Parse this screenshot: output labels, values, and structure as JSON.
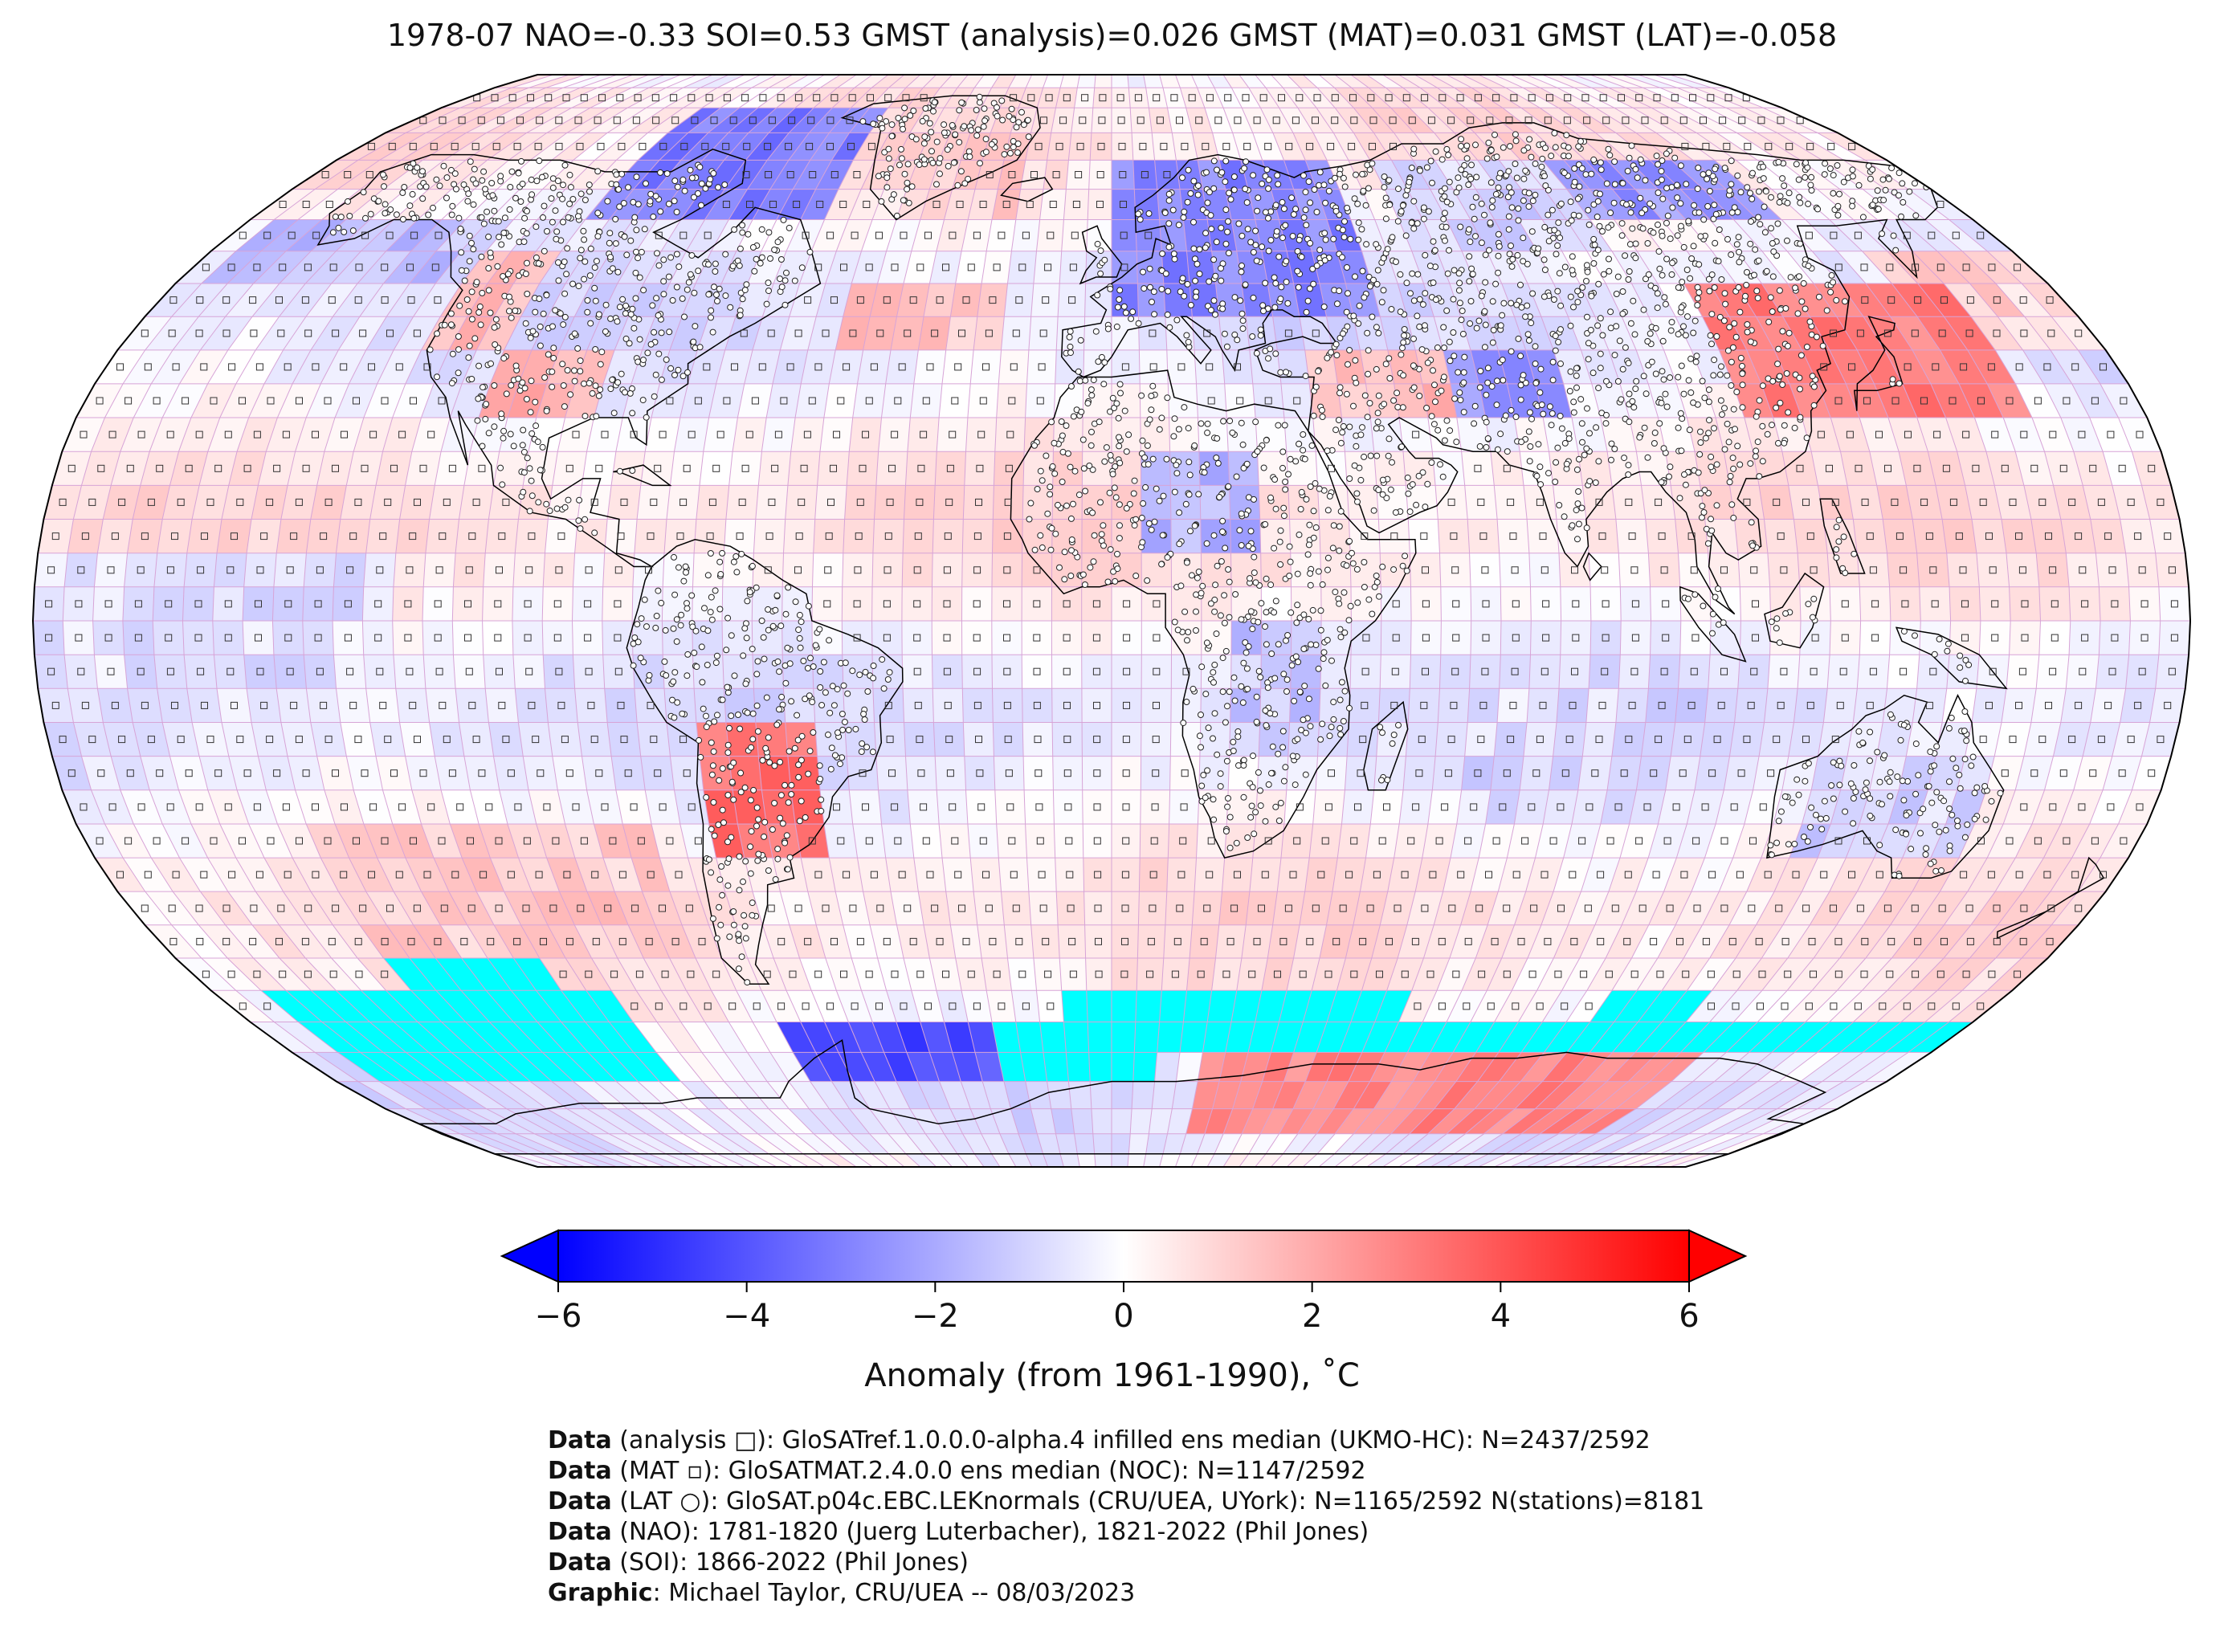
{
  "title": "1978-07 NAO=-0.33 SOI=0.53 GMST (analysis)=0.026 GMST (MAT)=0.031 GMST (LAT)=-0.058",
  "colorbar": {
    "label": "Anomaly (from 1961-1990), ˚C",
    "ticks": [
      "−6",
      "−4",
      "−2",
      "0",
      "2",
      "4",
      "6"
    ],
    "tick_values": [
      -6,
      -4,
      -2,
      0,
      2,
      4,
      6
    ],
    "min_color": "#0000ff",
    "mid_color": "#ffffff",
    "max_color": "#ff0000",
    "missing_color": "#00ffff"
  },
  "map": {
    "projection": "Robinson",
    "grid_color": "#d7a4d7",
    "coast_color": "#000000",
    "anomaly_regions": [
      {
        "name": "north-canada",
        "lon": [
          -110,
          -60
        ],
        "lat": [
          58,
          80
        ],
        "value": -3.0
      },
      {
        "name": "greenland-east",
        "lon": [
          -40,
          -20
        ],
        "lat": [
          60,
          75
        ],
        "value": 1.2
      },
      {
        "name": "alaska-pacific",
        "lon": [
          -175,
          -125
        ],
        "lat": [
          50,
          62
        ],
        "value": -1.5
      },
      {
        "name": "usa-central",
        "lon": [
          -110,
          -90
        ],
        "lat": [
          30,
          40
        ],
        "value": 1.8
      },
      {
        "name": "west-coast",
        "lon": [
          -125,
          -110
        ],
        "lat": [
          40,
          55
        ],
        "value": 1.6
      },
      {
        "name": "atlantic-north",
        "lon": [
          -50,
          -20
        ],
        "lat": [
          40,
          50
        ],
        "value": 1.3
      },
      {
        "name": "europe-scand",
        "lon": [
          0,
          50
        ],
        "lat": [
          45,
          70
        ],
        "value": -2.8
      },
      {
        "name": "siberia-west",
        "lon": [
          60,
          100
        ],
        "lat": [
          55,
          70
        ],
        "value": -1.0
      },
      {
        "name": "siberia-east",
        "lon": [
          100,
          140
        ],
        "lat": [
          58,
          72
        ],
        "value": -2.4
      },
      {
        "name": "east-asia",
        "lon": [
          110,
          160
        ],
        "lat": [
          30,
          52
        ],
        "value": 3.0
      },
      {
        "name": "middle-east",
        "lon": [
          35,
          60
        ],
        "lat": [
          28,
          42
        ],
        "value": 1.5
      },
      {
        "name": "central-asia",
        "lon": [
          60,
          80
        ],
        "lat": [
          28,
          40
        ],
        "value": -2.4
      },
      {
        "name": "north-africa",
        "lon": [
          5,
          25
        ],
        "lat": [
          10,
          25
        ],
        "value": -1.8
      },
      {
        "name": "central-africa",
        "lon": [
          20,
          35
        ],
        "lat": [
          -20,
          0
        ],
        "value": -1.3
      },
      {
        "name": "indian-ocean",
        "lon": [
          60,
          100
        ],
        "lat": [
          -30,
          -10
        ],
        "value": -0.8
      },
      {
        "name": "south-america-central",
        "lon": [
          -70,
          -50
        ],
        "lat": [
          -35,
          -15
        ],
        "value": 3.4
      },
      {
        "name": "south-pacific-east",
        "lon": [
          -140,
          -80
        ],
        "lat": [
          -50,
          -30
        ],
        "value": 1.2
      },
      {
        "name": "antarctic-peninsula",
        "lon": [
          -70,
          -20
        ],
        "lat": [
          -72,
          -58
        ],
        "value": -4.2
      },
      {
        "name": "australia-south",
        "lon": [
          120,
          150
        ],
        "lat": [
          -35,
          -20
        ],
        "value": -1.0
      },
      {
        "name": "east-antarctica",
        "lon": [
          20,
          130
        ],
        "lat": [
          -78,
          -62
        ],
        "value": 2.8
      },
      {
        "name": "north-pacific",
        "lon": [
          150,
          180
        ],
        "lat": [
          40,
          55
        ],
        "value": 1.0
      },
      {
        "name": "tropical-pacific",
        "lon": [
          -180,
          -120
        ],
        "lat": [
          -10,
          10
        ],
        "value": -0.6
      }
    ],
    "missing_regions": [
      {
        "name": "southern-ocean-pacific",
        "lon": [
          -170,
          -100
        ],
        "lat": [
          -70,
          -55
        ]
      },
      {
        "name": "southern-ocean-pacific-2",
        "lon": [
          -140,
          -110
        ],
        "lat": [
          -55,
          -50
        ]
      },
      {
        "name": "southern-ocean-indian",
        "lon": [
          0,
          180
        ],
        "lat": [
          -65,
          -60
        ]
      },
      {
        "name": "southern-ocean-indian-2",
        "lon": [
          -10,
          60
        ],
        "lat": [
          -62,
          -55
        ]
      },
      {
        "name": "southern-ocean-indian-3",
        "lon": [
          100,
          120
        ],
        "lat": [
          -60,
          -55
        ]
      },
      {
        "name": "antarctic-atlantic",
        "lon": [
          -25,
          10
        ],
        "lat": [
          -70,
          -62
        ]
      }
    ]
  },
  "credits": [
    {
      "bold": "Data",
      "text": " (analysis □): GloSATref.1.0.0.0-alpha.4 infilled ens median (UKMO-HC): N=2437/2592"
    },
    {
      "bold": "Data",
      "text": " (MAT ▫): GloSATMAT.2.4.0.0 ens median (NOC): N=1147/2592"
    },
    {
      "bold": "Data",
      "text": " (LAT ○): GloSAT.p04c.EBC.LEKnormals (CRU/UEA, UYork): N=1165/2592 N(stations)=8181"
    },
    {
      "bold": "Data",
      "text": " (NAO): 1781-1820 (Juerg Luterbacher), 1821-2022 (Phil Jones)"
    },
    {
      "bold": "Data",
      "text": " (SOI): 1866-2022 (Phil Jones)"
    },
    {
      "bold": "Graphic",
      "text": ": Michael Taylor, CRU/UEA -- 08/03/2023"
    }
  ]
}
